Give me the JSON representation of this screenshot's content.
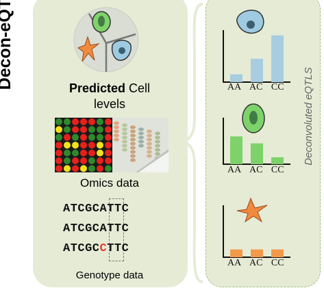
{
  "title": "Decon-eQTL",
  "left": {
    "cell_label_bold": "Predicted",
    "cell_label_rest": " Cell",
    "cell_label_line2": "levels",
    "omics_label": "Omics data",
    "genotype_label": "Genotype data",
    "sequences": [
      {
        "pre": "ATCGC",
        "hl": "A",
        "post": "TTC",
        "highlight": false
      },
      {
        "pre": "ATCGC",
        "hl": "A",
        "post": "TTC",
        "highlight": false
      },
      {
        "pre": "ATCGC",
        "hl": "C",
        "post": "TTC",
        "highlight": true
      }
    ]
  },
  "right": {
    "side_label": "Deconvoluted eQTLS"
  },
  "chart_data": [
    {
      "type": "bar",
      "categories": [
        "AA",
        "AC",
        "CC"
      ],
      "values": [
        1,
        3,
        6
      ],
      "color": "#a8cde0",
      "cell": "blue-cell"
    },
    {
      "type": "bar",
      "categories": [
        "AA",
        "AC",
        "CC"
      ],
      "values": [
        4,
        3,
        1
      ],
      "color": "#7ed26a",
      "cell": "green-cell"
    },
    {
      "type": "bar",
      "categories": [
        "AA",
        "AC",
        "CC"
      ],
      "values": [
        1,
        1,
        1
      ],
      "color": "#f29a4a",
      "cell": "orange-cell"
    }
  ]
}
